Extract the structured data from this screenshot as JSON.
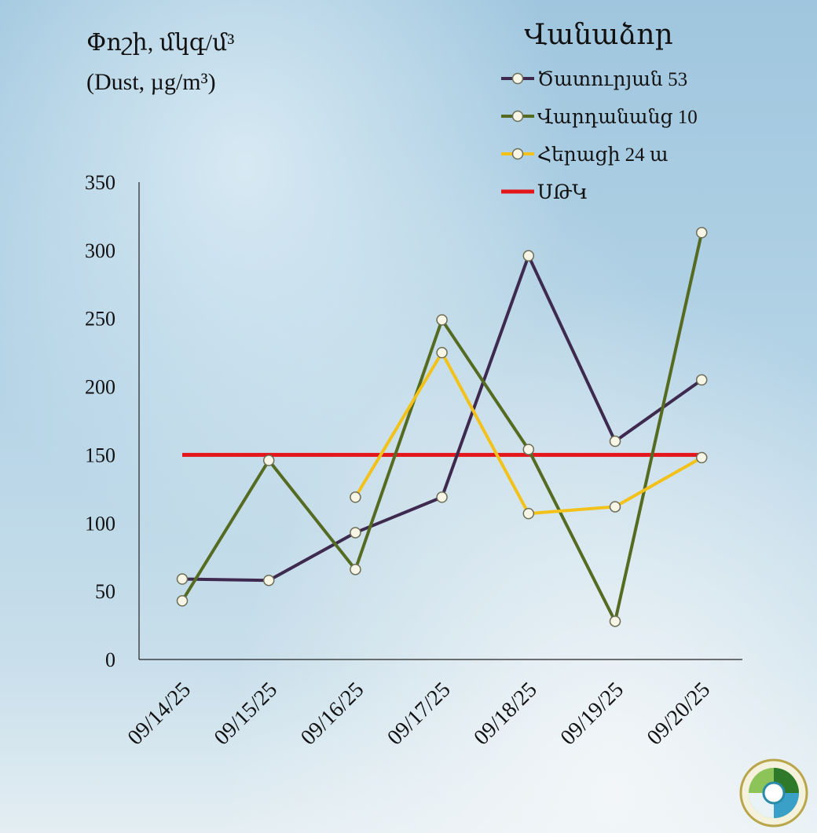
{
  "chart_data": {
    "type": "line",
    "title": "Վանաձոր",
    "ylabel": "Փոշի, մկգ/մ³",
    "ylabel_en": "(Dust, µg/m³)",
    "categories": [
      "09/14/25",
      "09/15/25",
      "09/16/25",
      "09/17/25",
      "09/18/25",
      "09/19/25",
      "09/20/25"
    ],
    "ylim": [
      0,
      350
    ],
    "yticks": [
      0,
      50,
      100,
      150,
      200,
      250,
      300,
      350
    ],
    "grid": false,
    "legend_position": "top-right",
    "series": [
      {
        "name": "Ծատուրյան 53",
        "color": "#3f2a4f",
        "marker": true,
        "values": [
          59,
          58,
          93,
          119,
          296,
          160,
          205
        ]
      },
      {
        "name": "Վարդանանց 10",
        "color": "#556b22",
        "marker": true,
        "values": [
          43,
          146,
          66,
          249,
          154,
          28,
          313
        ]
      },
      {
        "name": "Հերացի 24 ա",
        "color": "#f2c11a",
        "marker": true,
        "values": [
          null,
          null,
          119,
          225,
          107,
          112,
          148
        ]
      },
      {
        "name": "ՍԹԿ",
        "color": "#e3161b",
        "marker": false,
        "values": [
          150,
          150,
          150,
          150,
          150,
          150,
          150
        ]
      }
    ]
  }
}
